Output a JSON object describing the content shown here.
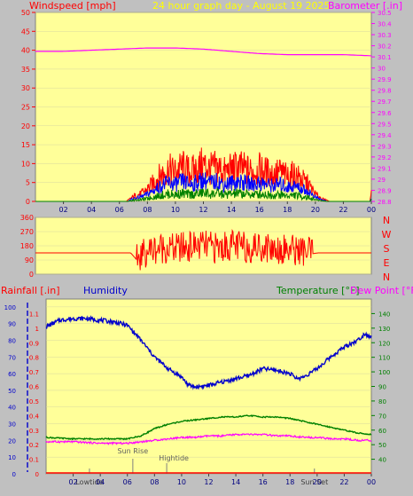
{
  "header": {
    "left_label": "Windspeed [mph]",
    "center_label": "24 hour graph day - August 19 2025",
    "right_label": "Barometer [.in]"
  },
  "colors": {
    "plot_bg": "#ffff99",
    "frame_bg": "#c0c0c0",
    "wind_gust": "#ff0000",
    "wind_avg": "#0000ff",
    "wind_low": "#008000",
    "barometer": "#ff00ff",
    "direction": "#ff0000",
    "rainfall": "#ff0000",
    "humidity": "#0000cc",
    "temperature": "#008000",
    "dewpoint": "#ff00ff",
    "annotation": "#808080"
  },
  "time_ticks": [
    "02",
    "04",
    "06",
    "08",
    "10",
    "12",
    "14",
    "16",
    "18",
    "20",
    "22",
    "00"
  ],
  "chart_data": [
    {
      "type": "line",
      "panel": "wind",
      "ylabel_left": "Windspeed [mph]",
      "ylabel_right": "Barometer [.in]",
      "ylim_left": [
        0,
        50
      ],
      "yticks_left": [
        "0",
        "5",
        "10",
        "15",
        "20",
        "25",
        "30",
        "35",
        "40",
        "45",
        "50"
      ],
      "ylim_right": [
        28.8,
        30.5
      ],
      "yticks_right": [
        "28.8",
        "28.9",
        "29",
        "29.1",
        "29.2",
        "29.3",
        "29.4",
        "29.5",
        "29.6",
        "29.7",
        "29.8",
        "29.9",
        "30",
        "30.1",
        "30.2",
        "30.3",
        "30.4",
        "30.5"
      ],
      "series": [
        {
          "name": "Windspeed",
          "color": "#ff0000",
          "x": [
            0,
            6.5,
            7,
            7.5,
            8,
            8.5,
            9,
            9.5,
            10,
            10.5,
            11,
            11.5,
            12,
            12.5,
            13,
            13.5,
            14,
            14.5,
            15,
            15.5,
            16,
            16.5,
            17,
            17.5,
            18,
            18.5,
            19,
            19.5,
            20,
            20.5,
            21,
            23.9,
            24
          ],
          "y": [
            0,
            0,
            2,
            3,
            5,
            8,
            11,
            13,
            12,
            14,
            12,
            13,
            15,
            13,
            14,
            12,
            13,
            14,
            13,
            12,
            13,
            12,
            11,
            12,
            10,
            11,
            9,
            7,
            3,
            1,
            0,
            0,
            3
          ]
        },
        {
          "name": "Barometer",
          "color": "#ff00ff",
          "x": [
            0,
            2,
            4,
            6,
            8,
            10,
            12,
            14,
            16,
            18,
            20,
            22,
            24
          ],
          "y": [
            30.15,
            30.15,
            30.16,
            30.17,
            30.18,
            30.18,
            30.17,
            30.15,
            30.13,
            30.12,
            30.12,
            30.12,
            30.11
          ]
        }
      ]
    },
    {
      "type": "line",
      "panel": "direction",
      "ylim": [
        0,
        360
      ],
      "yticks": [
        "0",
        "90",
        "180",
        "270",
        "360"
      ],
      "right_labels": [
        "N",
        "W",
        "S",
        "E",
        "N"
      ],
      "series": [
        {
          "name": "Wind Direction",
          "color": "#ff0000",
          "x": [
            0,
            6.8,
            7.2,
            8,
            9,
            10,
            11,
            12,
            13,
            14,
            15,
            16,
            17,
            18,
            19,
            19.8,
            20.2,
            24
          ],
          "y": [
            135,
            135,
            95,
            150,
            170,
            160,
            175,
            180,
            165,
            185,
            170,
            175,
            165,
            160,
            150,
            130,
            135,
            135
          ]
        }
      ]
    },
    {
      "type": "line",
      "panel": "climate",
      "ylabel_left_1": "Rainfall [.in]",
      "ylabel_left_2": "Humidity",
      "ylabel_right_1": "Temperature [°F]",
      "ylabel_right_2": "Dew Point [°F]",
      "ylim_rain": [
        0,
        1.2
      ],
      "yticks_rain": [
        "0",
        "0.1",
        "0.2",
        "0.3",
        "0.4",
        "0.5",
        "0.6",
        "0.7",
        "0.8",
        "0.9",
        "1",
        "1.1"
      ],
      "ylim_humidity": [
        0,
        100
      ],
      "yticks_humidity": [
        "0",
        "10",
        "20",
        "30",
        "40",
        "50",
        "60",
        "70",
        "80",
        "90",
        "100"
      ],
      "ylim_temp": [
        30,
        150
      ],
      "yticks_temp": [
        "40",
        "50",
        "60",
        "70",
        "80",
        "90",
        "100",
        "110",
        "120",
        "130",
        "140"
      ],
      "series": [
        {
          "name": "Humidity",
          "color": "#0000cc",
          "x": [
            0,
            1,
            2,
            3,
            4,
            5,
            6,
            7,
            8,
            9,
            10,
            10.5,
            11,
            12,
            13,
            14,
            15,
            16,
            17,
            18,
            18.5,
            19,
            20,
            21,
            22,
            23,
            23.5,
            24
          ],
          "y": [
            88,
            92,
            93,
            93,
            92,
            91,
            89,
            80,
            70,
            63,
            58,
            53,
            52,
            53,
            55,
            57,
            59,
            63,
            62,
            60,
            57,
            58,
            63,
            70,
            76,
            80,
            84,
            82
          ]
        },
        {
          "name": "Temperature",
          "color": "#008000",
          "x": [
            0,
            2,
            4,
            6,
            7,
            8,
            9,
            10,
            11,
            12,
            13,
            14,
            15,
            16,
            17,
            18,
            19,
            20,
            21,
            22,
            23,
            24
          ],
          "y": [
            55,
            54,
            54,
            54,
            56,
            61,
            64,
            66,
            67,
            68,
            69,
            69,
            70,
            69,
            69,
            68,
            66,
            64,
            62,
            60,
            58,
            57
          ]
        },
        {
          "name": "Dew Point",
          "color": "#ff00ff",
          "x": [
            0,
            2,
            4,
            6,
            7,
            8,
            9,
            10,
            11,
            12,
            13,
            14,
            15,
            16,
            17,
            18,
            19,
            20,
            21,
            22,
            23,
            24
          ],
          "y": [
            52,
            52,
            51,
            51,
            52,
            53,
            54,
            55,
            55,
            56,
            56,
            57,
            57,
            57,
            56,
            56,
            55,
            55,
            54,
            54,
            53,
            53
          ]
        },
        {
          "name": "Rainfall",
          "color": "#ff0000",
          "x": [
            0,
            24
          ],
          "y": [
            0,
            0
          ]
        }
      ],
      "annotations": [
        {
          "label": "Sun Rise",
          "x": 6.4
        },
        {
          "label": "Hightide",
          "x": 8.9
        },
        {
          "label": "Lowtide",
          "x": 3.2
        },
        {
          "label": "Sun Set",
          "x": 19.8
        }
      ]
    }
  ]
}
